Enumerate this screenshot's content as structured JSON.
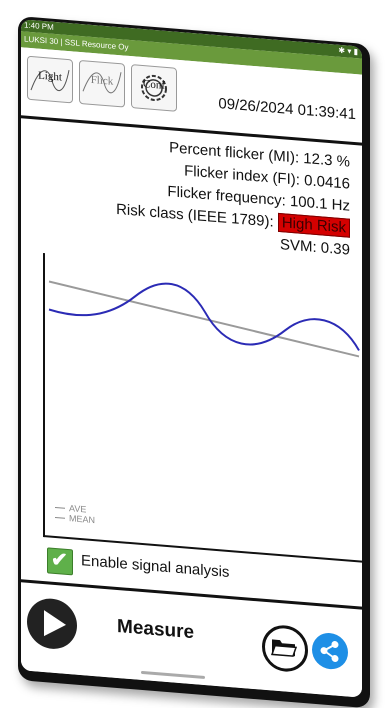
{
  "status": {
    "time": "1:40 PM"
  },
  "app": {
    "title": "LUKSI 30 | SSL Resource Oy"
  },
  "tabs": [
    {
      "label": "Light",
      "icon": "light-wave-icon"
    },
    {
      "label": "Flick",
      "icon": "flicker-wave-icon"
    },
    {
      "label": "Conf",
      "icon": "gear-icon"
    }
  ],
  "header": {
    "datetime": "09/26/2024 01:39:41"
  },
  "readings": {
    "percent_flicker": {
      "label": "Percent flicker (MI):",
      "value": "12.3 %"
    },
    "flicker_index": {
      "label": "Flicker index (FI):",
      "value": "0.0416"
    },
    "flicker_frequency": {
      "label": "Flicker frequency:",
      "value": "100.1 Hz"
    },
    "risk_class": {
      "label": "Risk class (IEEE 1789):",
      "value": "High Risk"
    },
    "svm": {
      "label": "SVM:",
      "value": "0.39"
    }
  },
  "chart": {
    "legend": [
      "AVE",
      "MEAN"
    ]
  },
  "analysis": {
    "checked": true,
    "label": "Enable signal analysis"
  },
  "actions": {
    "measure_label": "Measure",
    "play_icon": "play-icon",
    "folder_icon": "folder-icon",
    "share_icon": "share-icon"
  },
  "colors": {
    "statusbar": "#3f6b22",
    "titlebar": "#6a9a3c",
    "waveform": "#2b2bb5",
    "mean_line": "#9a9a9a",
    "risk_high": "#d40000",
    "checkbox": "#5fb04a",
    "share": "#1e8fe6"
  }
}
